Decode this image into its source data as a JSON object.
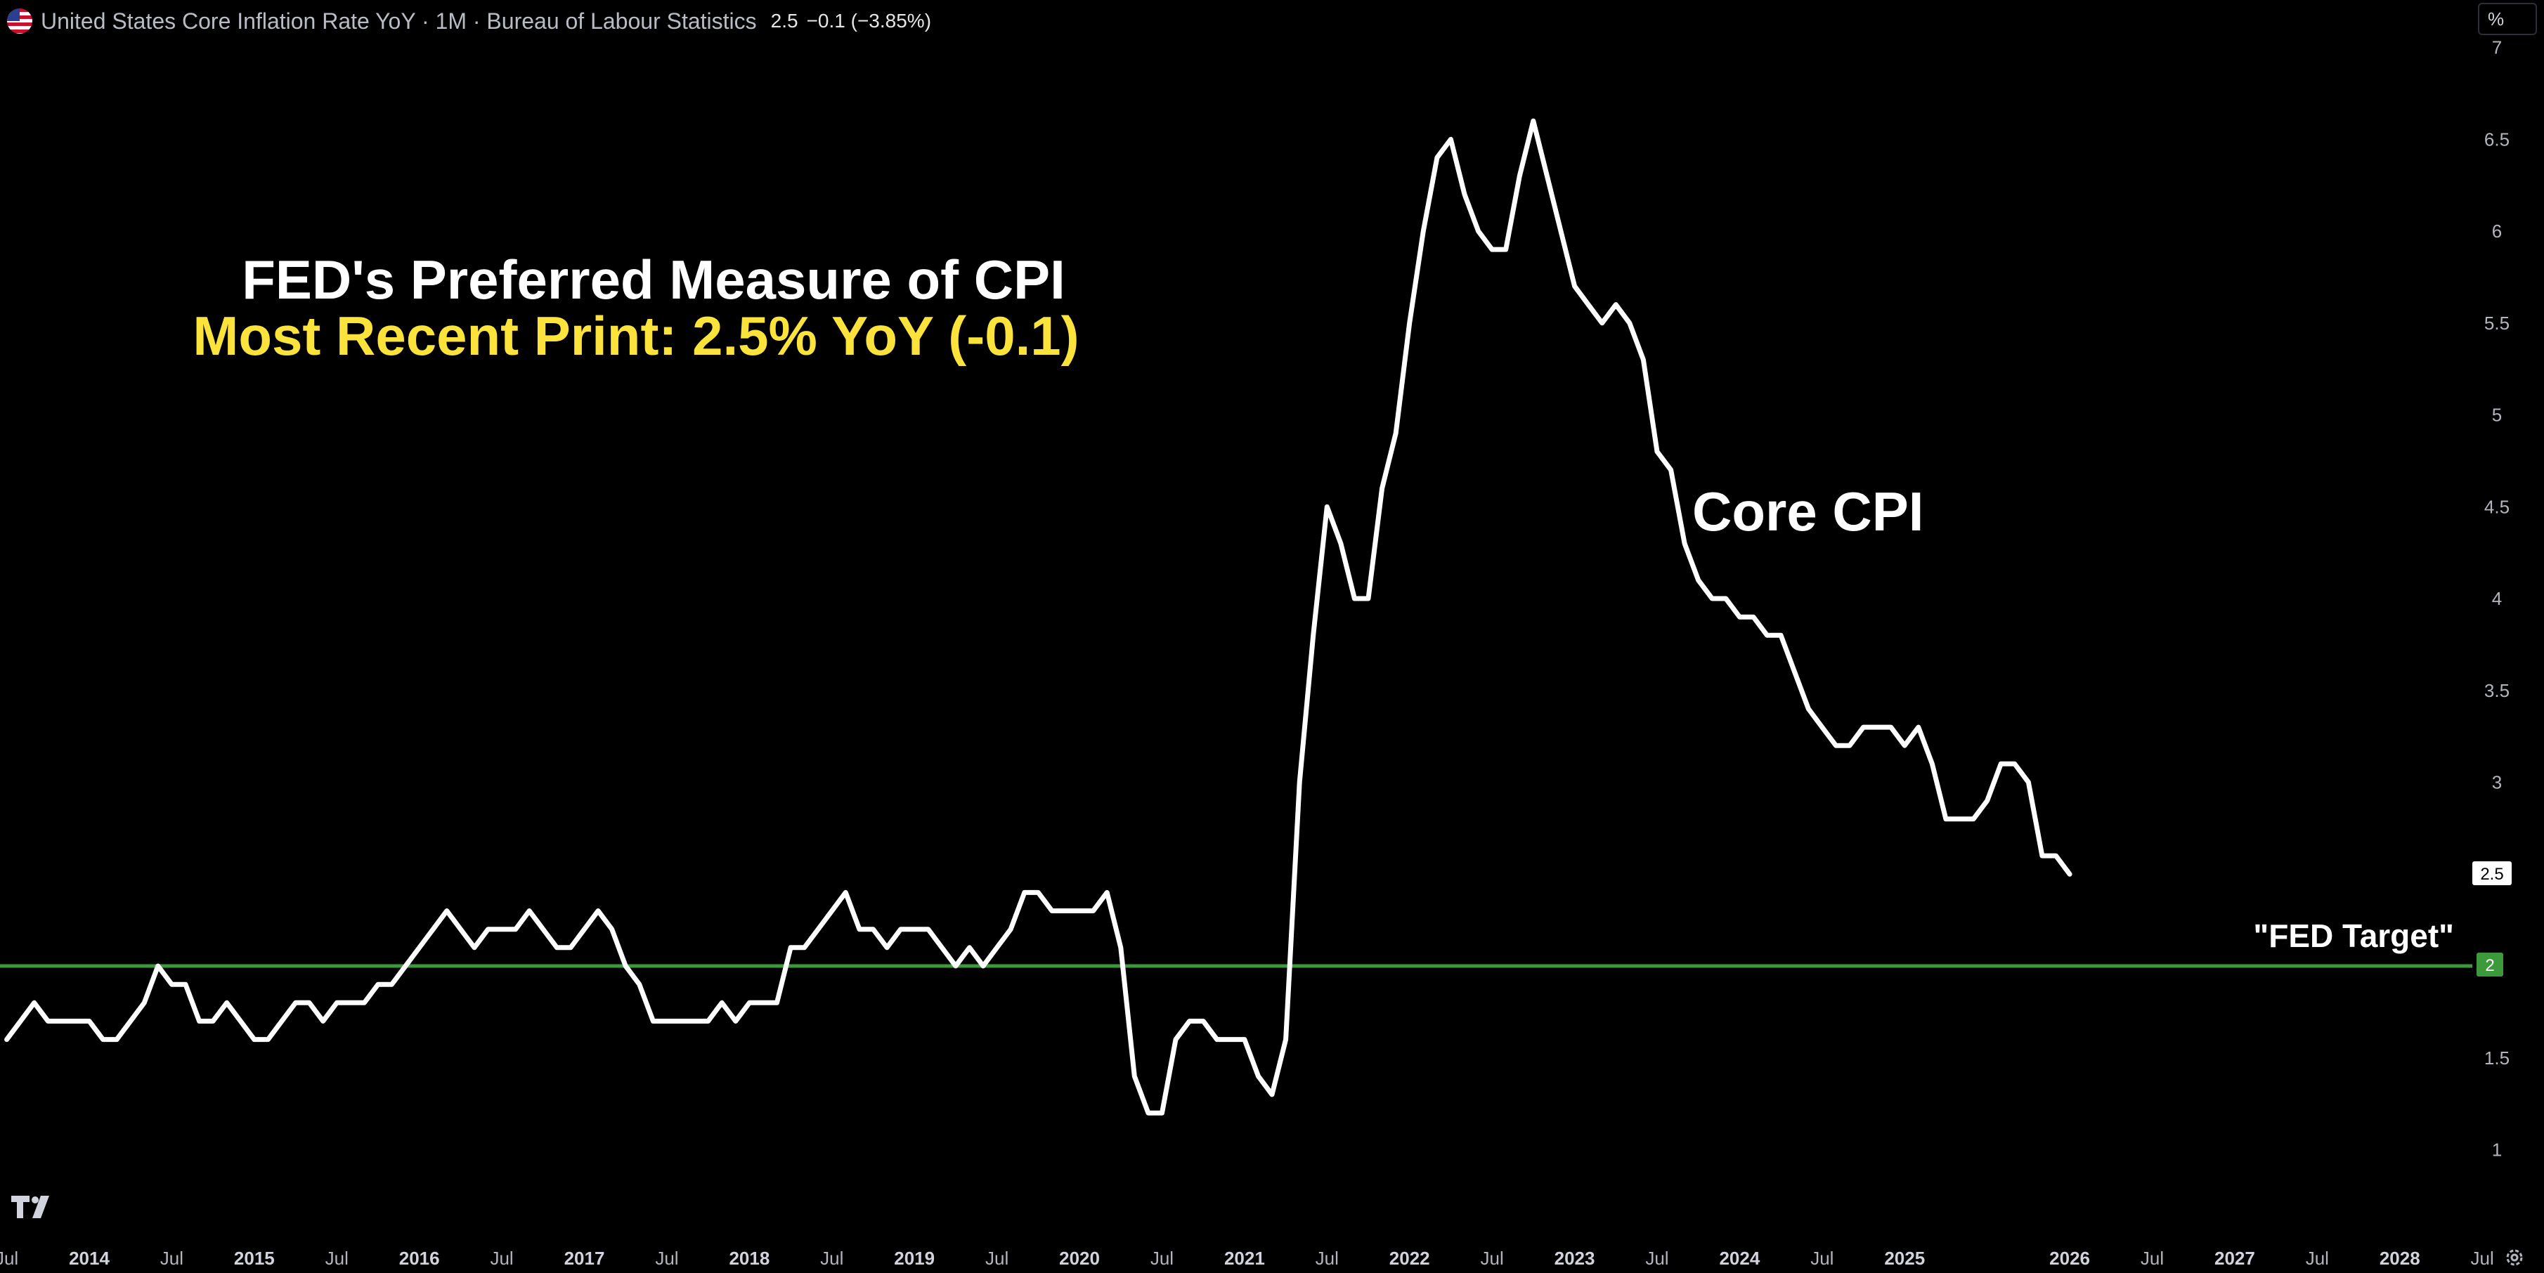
{
  "header": {
    "title": "United States Core Inflation Rate YoY · 1M · Bureau of Labour Statistics",
    "value": "2.5",
    "change": "−0.1 (−3.85%)",
    "flag_icon": "us-flag-icon"
  },
  "scale_button": {
    "label": "%"
  },
  "chart_data": {
    "type": "line",
    "title": "FED's Preferred Measure of CPI",
    "subtitle": "Most Recent Print: 2.5% YoY (-0.1)",
    "series": [
      {
        "name": "Core CPI",
        "color": "#ffffff",
        "start": "2013-07",
        "frequency": "monthly",
        "values": [
          1.6,
          1.7,
          1.8,
          1.7,
          1.7,
          1.7,
          1.7,
          1.6,
          1.6,
          1.7,
          1.8,
          2.0,
          1.9,
          1.9,
          1.7,
          1.7,
          1.8,
          1.7,
          1.6,
          1.6,
          1.7,
          1.8,
          1.8,
          1.7,
          1.8,
          1.8,
          1.8,
          1.9,
          1.9,
          2.0,
          2.1,
          2.2,
          2.3,
          2.2,
          2.1,
          2.2,
          2.2,
          2.2,
          2.3,
          2.2,
          2.1,
          2.1,
          2.2,
          2.3,
          2.2,
          2.0,
          1.9,
          1.7,
          1.7,
          1.7,
          1.7,
          1.7,
          1.8,
          1.7,
          1.8,
          1.8,
          1.8,
          2.1,
          2.1,
          2.2,
          2.3,
          2.4,
          2.2,
          2.2,
          2.1,
          2.2,
          2.2,
          2.2,
          2.1,
          2.0,
          2.1,
          2.0,
          2.1,
          2.2,
          2.4,
          2.4,
          2.3,
          2.3,
          2.3,
          2.3,
          2.4,
          2.1,
          1.4,
          1.2,
          1.2,
          1.6,
          1.7,
          1.7,
          1.6,
          1.6,
          1.6,
          1.4,
          1.3,
          1.6,
          3.0,
          3.8,
          4.5,
          4.3,
          4.0,
          4.0,
          4.6,
          4.9,
          5.5,
          6.0,
          6.4,
          6.5,
          6.2,
          6.0,
          5.9,
          5.9,
          6.3,
          6.6,
          6.3,
          6.0,
          5.7,
          5.6,
          5.5,
          5.6,
          5.5,
          5.3,
          4.8,
          4.7,
          4.3,
          4.1,
          4.0,
          4.0,
          3.9,
          3.9,
          3.8,
          3.8,
          3.6,
          3.4,
          3.3,
          3.2,
          3.2,
          3.3,
          3.3,
          3.3,
          3.2,
          3.3,
          3.1,
          2.8,
          2.8,
          2.8,
          2.9,
          3.1,
          3.1,
          3.0,
          2.6,
          2.6,
          2.5
        ]
      }
    ],
    "target_line": {
      "label": "\"FED Target\"",
      "value": 2,
      "color": "#3c9a3c"
    },
    "series_label": "Core CPI",
    "y_axis": {
      "ticks": [
        "1",
        "1.5",
        "2",
        "2.5",
        "3",
        "3.5",
        "4",
        "4.5",
        "5",
        "5.5",
        "6",
        "6.5",
        "7"
      ],
      "range": [
        0.5,
        7.0
      ]
    },
    "x_axis": {
      "labels": [
        "Jul",
        "2014",
        "Jul",
        "2015",
        "Jul",
        "2016",
        "Jul",
        "2017",
        "Jul",
        "2018",
        "Jul",
        "2019",
        "Jul",
        "2020",
        "Jul",
        "2021",
        "Jul",
        "2022",
        "Jul",
        "2023",
        "Jul",
        "2024",
        "Jul",
        "2025",
        "2026",
        "Jul",
        "2027",
        "Jul",
        "2028",
        "Jul"
      ],
      "bold_years": [
        "2014",
        "2015",
        "2016",
        "2017",
        "2018",
        "2019",
        "2020",
        "2021",
        "2022",
        "2023",
        "2024",
        "2025",
        "2026",
        "2027",
        "2028"
      ]
    },
    "last_value_label": "2.5",
    "target_value_label": "2",
    "grid": false,
    "background": "#000000"
  },
  "icons": {
    "logo": "tradingview-logo-icon",
    "settings": "gear-icon"
  }
}
